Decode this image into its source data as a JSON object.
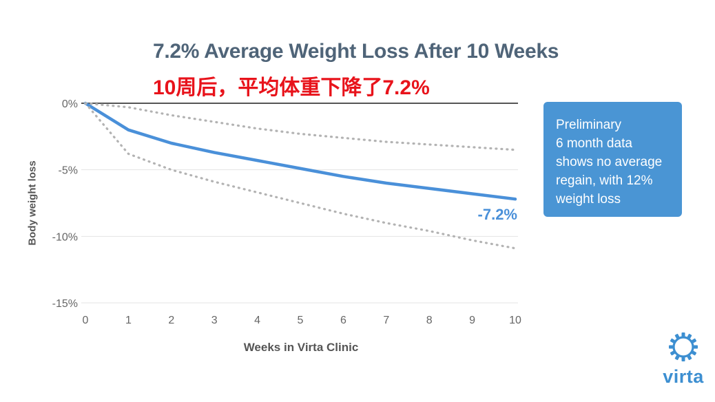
{
  "title": "7.2% Average Weight Loss After 10 Weeks",
  "subtitle": "10周后，平均体重下降了7.2%",
  "note": {
    "lines": [
      "Preliminary",
      "6 month data",
      "shows no average",
      "regain, with 12%",
      "weight loss"
    ]
  },
  "logo": {
    "text": "virta",
    "icon": "sun-gear-icon"
  },
  "colors": {
    "title": "#4f6478",
    "subtitle": "#e8131b",
    "series_main": "#4a90d9",
    "series_bounds": "#b3b3b3",
    "note_bg": "#4a95d4"
  },
  "chart_data": {
    "type": "line",
    "xlabel": "Weeks in Virta Clinic",
    "ylabel": "Body weight loss",
    "x": [
      0,
      1,
      2,
      3,
      4,
      5,
      6,
      7,
      8,
      9,
      10
    ],
    "x_ticks": [
      "0",
      "1",
      "2",
      "3",
      "4",
      "5",
      "6",
      "7",
      "8",
      "9",
      "10"
    ],
    "y_ticks": [
      {
        "value": 0,
        "label": "0%"
      },
      {
        "value": -5,
        "label": "-5%"
      },
      {
        "value": -10,
        "label": "-10%"
      },
      {
        "value": -15,
        "label": "-15%"
      }
    ],
    "ylim": [
      -15,
      0
    ],
    "xlim": [
      0,
      10
    ],
    "grid": true,
    "series": [
      {
        "role": "mean",
        "style": "solid",
        "values": [
          0,
          -2.0,
          -3.0,
          -3.7,
          -4.3,
          -4.9,
          -5.5,
          -6.0,
          -6.4,
          -6.8,
          -7.2
        ]
      },
      {
        "role": "upper-bound",
        "style": "dotted",
        "values": [
          0,
          -0.3,
          -0.9,
          -1.4,
          -1.9,
          -2.3,
          -2.6,
          -2.9,
          -3.1,
          -3.3,
          -3.5
        ]
      },
      {
        "role": "lower-bound",
        "style": "dotted",
        "values": [
          0,
          -3.8,
          -5.0,
          -5.9,
          -6.7,
          -7.5,
          -8.3,
          -9.0,
          -9.6,
          -10.3,
          -10.9
        ]
      }
    ],
    "annotations": [
      {
        "x": 10,
        "y": -7.2,
        "text": "-7.2%"
      }
    ]
  }
}
